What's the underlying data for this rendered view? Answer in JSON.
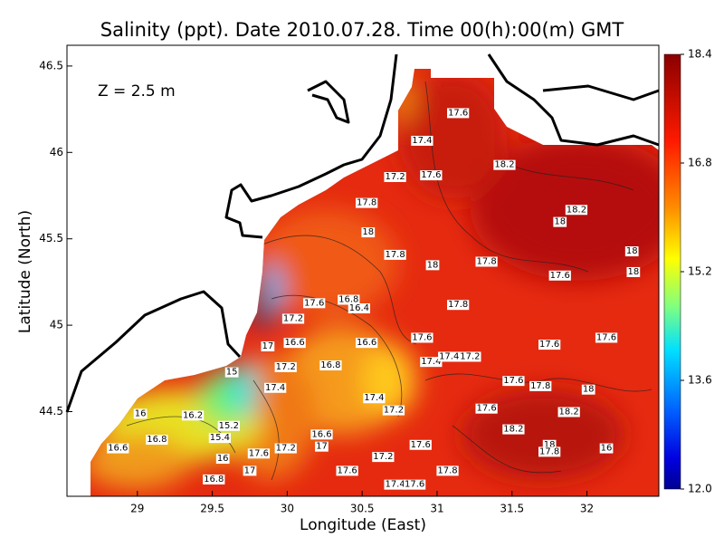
{
  "chart_data": {
    "type": "contour-map",
    "title": "Salinity (ppt). Date 2010.07.28. Time 00(h):00(m) GMT",
    "x_label": "Longitude (East)",
    "y_label": "Latitude (North)",
    "annotation": "Z = 2.5 m",
    "xlim": [
      28.53,
      32.48
    ],
    "ylim": [
      44.01,
      46.62
    ],
    "xticks": [
      29,
      29.5,
      30,
      30.5,
      31,
      31.5,
      32
    ],
    "yticks": [
      44.5,
      45,
      45.5,
      46,
      46.5
    ],
    "clim": [
      12,
      18.4
    ],
    "cticks": [
      {
        "value": 12,
        "label": "12.0"
      },
      13.6,
      15.2,
      16.8,
      18.4
    ],
    "contour_labels": {
      "lon": [
        31.14,
        30.9,
        30.72,
        30.96,
        31.45,
        30.53,
        31.93,
        31.82,
        30.54,
        30.72,
        30.97,
        31.33,
        32.3,
        31.82,
        32.31,
        30.18,
        30.41,
        30.48,
        31.14,
        30.04,
        29.87,
        30.05,
        30.53,
        30.9,
        31.75,
        32.13,
        29.99,
        30.29,
        30.96,
        31.08,
        31.22,
        29.63,
        29.92,
        31.51,
        31.69,
        32.01,
        30.58,
        30.71,
        31.33,
        31.88,
        29.02,
        29.37,
        29.61,
        29.55,
        28.87,
        29.13,
        30.23,
        30.23,
        31.51,
        31.75,
        31.75,
        32.13,
        30.89,
        29.81,
        29.99,
        30.64,
        31.07,
        30.4,
        29.75,
        29.57,
        29.51,
        30.72,
        30.85
      ],
      "lat": [
        46.23,
        46.07,
        45.86,
        45.87,
        45.93,
        45.71,
        45.67,
        45.6,
        45.54,
        45.41,
        45.35,
        45.37,
        45.43,
        45.29,
        45.31,
        45.13,
        45.15,
        45.1,
        45.12,
        45.04,
        44.88,
        44.9,
        44.9,
        44.93,
        44.89,
        44.93,
        44.76,
        44.77,
        44.79,
        44.82,
        44.82,
        44.73,
        44.64,
        44.68,
        44.65,
        44.63,
        44.58,
        44.51,
        44.52,
        44.5,
        44.49,
        44.48,
        44.42,
        44.35,
        44.29,
        44.34,
        44.37,
        44.3,
        44.4,
        44.31,
        44.27,
        44.29,
        44.31,
        44.26,
        44.29,
        44.24,
        44.16,
        44.16,
        44.16,
        44.23,
        44.11,
        44.08,
        44.08
      ],
      "values": [
        17.6,
        17.4,
        17.2,
        17.6,
        18.2,
        17.8,
        18.2,
        18,
        18,
        17.8,
        18,
        17.8,
        18,
        17.6,
        18,
        17.6,
        16.8,
        16.4,
        17.8,
        17.2,
        17,
        16.6,
        16.6,
        17.6,
        17.6,
        17.6,
        17.2,
        16.8,
        17.4,
        17.4,
        17.2,
        15,
        17.4,
        17.6,
        17.8,
        18,
        17.4,
        17.2,
        17.6,
        18.2,
        16,
        16.2,
        15.2,
        15.4,
        16.6,
        16.8,
        16.6,
        17,
        18.2,
        18,
        17.8,
        16,
        17.6,
        17.6,
        17.2,
        17.2,
        17.8,
        17.6,
        17,
        16,
        16.8,
        17.4,
        17.6
      ]
    }
  }
}
